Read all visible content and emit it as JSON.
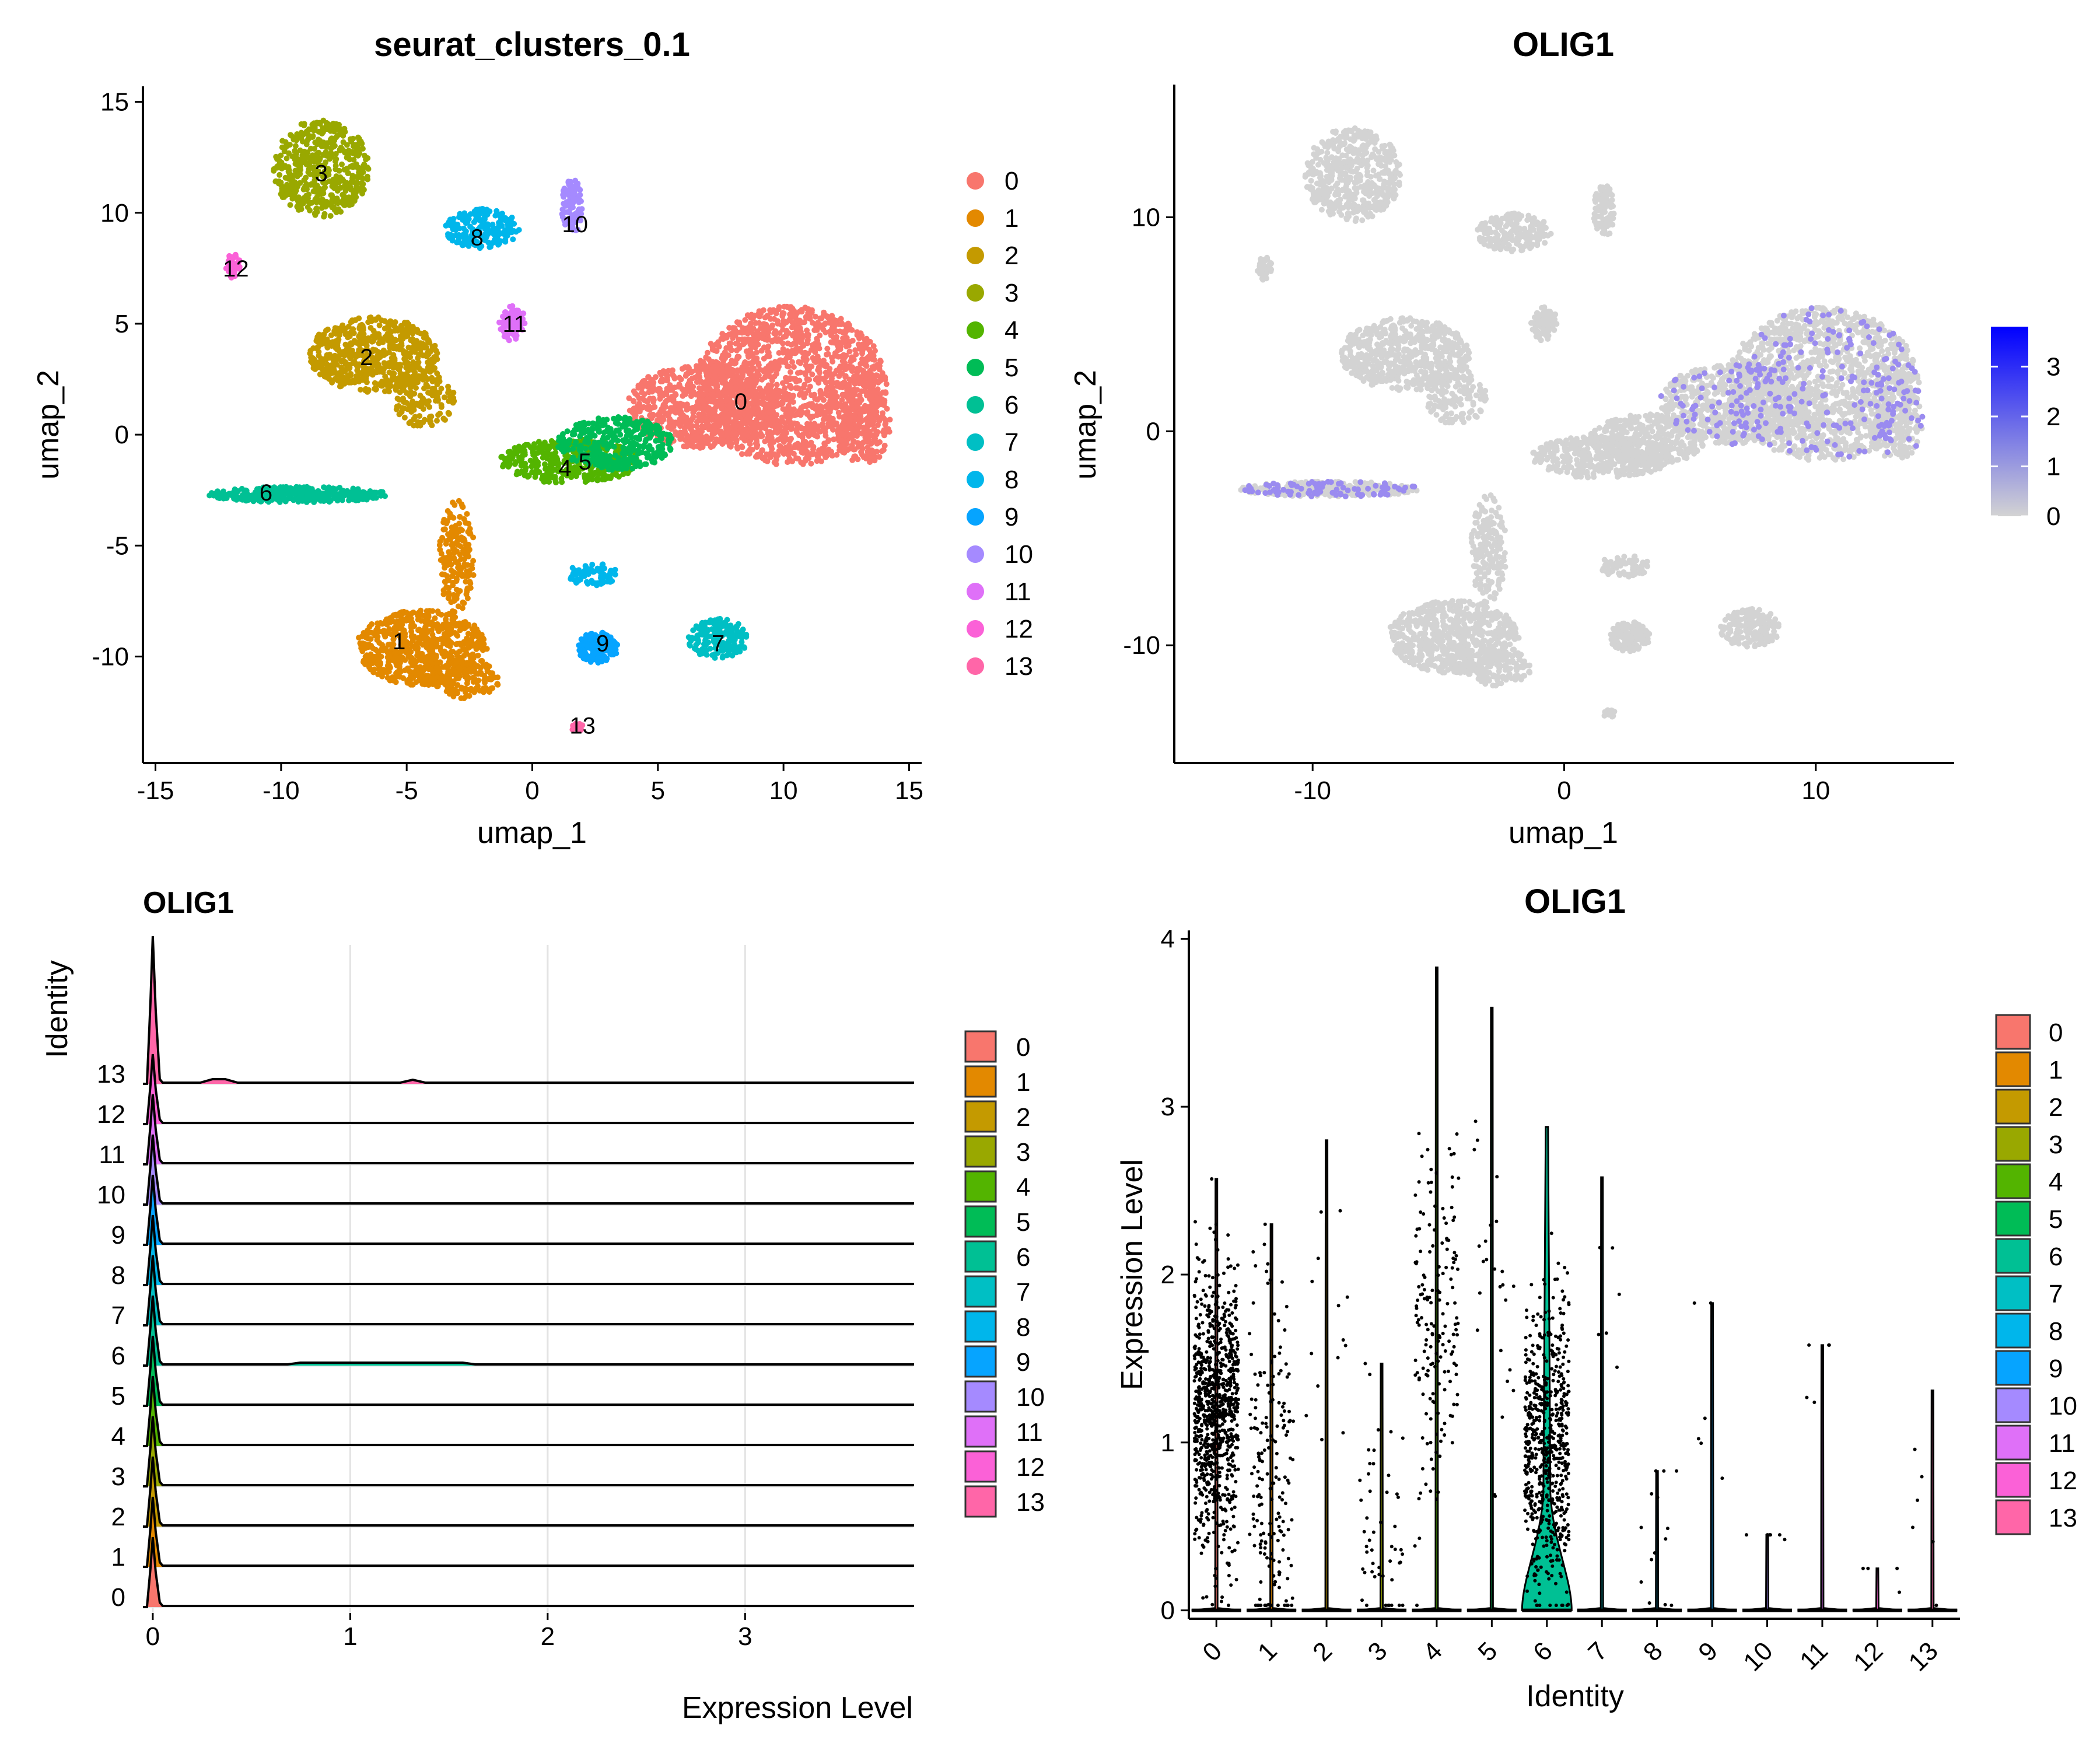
{
  "colors": {
    "clusters": [
      "#F8766D",
      "#E38900",
      "#C49A00",
      "#99A800",
      "#53B400",
      "#00BC56",
      "#00C094",
      "#00BFC4",
      "#00B6EB",
      "#06A4FF",
      "#A58AFF",
      "#DF70F8",
      "#FB61D7",
      "#FF66A8"
    ],
    "feature_low": "#D3D3D3",
    "feature_high": "#0000FF",
    "axis": "#000000"
  },
  "chart_data": [
    {
      "type": "scatter",
      "title": "seurat_clusters_0.1",
      "xlabel": "umap_1",
      "ylabel": "umap_2",
      "xlim": [
        -15.5,
        15.5
      ],
      "ylim": [
        -14.8,
        15.7
      ],
      "x_ticks": [
        -15,
        -10,
        -5,
        0,
        5,
        10,
        15
      ],
      "x_tick_labels": [
        "-15",
        "-10",
        "-5",
        "0",
        "5",
        "10",
        "15"
      ],
      "y_ticks": [
        -10,
        -5,
        0,
        5,
        10,
        15
      ],
      "y_tick_labels": [
        "-10",
        "-5",
        "0",
        "5",
        "10",
        "15"
      ],
      "legend_position": "right",
      "legend": [
        "0",
        "1",
        "2",
        "3",
        "4",
        "5",
        "6",
        "7",
        "8",
        "9",
        "10",
        "11",
        "12",
        "13"
      ],
      "cluster_labels": [
        {
          "label": "0",
          "x": 8.3,
          "y": 1.5
        },
        {
          "label": "1",
          "x": -5.3,
          "y": -9.3
        },
        {
          "label": "2",
          "x": -6.6,
          "y": 3.5
        },
        {
          "label": "3",
          "x": -8.4,
          "y": 11.8
        },
        {
          "label": "4",
          "x": 1.3,
          "y": -1.5
        },
        {
          "label": "5",
          "x": 2.1,
          "y": -1.2
        },
        {
          "label": "6",
          "x": -10.6,
          "y": -2.6
        },
        {
          "label": "7",
          "x": 7.4,
          "y": -9.4
        },
        {
          "label": "8",
          "x": -2.2,
          "y": 8.9
        },
        {
          "label": "9",
          "x": 2.8,
          "y": -9.4
        },
        {
          "label": "10",
          "x": 1.7,
          "y": 9.5
        },
        {
          "label": "11",
          "x": -0.7,
          "y": 5.0
        },
        {
          "label": "12",
          "x": -11.8,
          "y": 7.5
        },
        {
          "label": "13",
          "x": 2.0,
          "y": -13.1
        }
      ]
    },
    {
      "type": "scatter",
      "title": "OLIG1",
      "xlabel": "umap_1",
      "ylabel": "umap_2",
      "xlim": [
        -15.5,
        15.5
      ],
      "ylim": [
        -15.5,
        16.2
      ],
      "x_ticks": [
        -10,
        0,
        10
      ],
      "x_tick_labels": [
        "-10",
        "0",
        "10"
      ],
      "y_ticks": [
        -10,
        0,
        10
      ],
      "y_tick_labels": [
        "-10",
        "0",
        "10"
      ],
      "colorbar": {
        "min": 0,
        "max": 3.8,
        "ticks": [
          0,
          1,
          2,
          3
        ],
        "tick_labels": [
          "0",
          "1",
          "2",
          "3"
        ]
      },
      "legend_position": "right"
    },
    {
      "type": "area",
      "title": "OLIG1",
      "xlabel": "Expression Level",
      "ylabel": "Identity",
      "xlim": [
        -0.05,
        3.85
      ],
      "x_ticks": [
        0,
        1,
        2,
        3
      ],
      "x_tick_labels": [
        "0",
        "1",
        "2",
        "3"
      ],
      "categories": [
        "0",
        "1",
        "2",
        "3",
        "4",
        "5",
        "6",
        "7",
        "8",
        "9",
        "10",
        "11",
        "12",
        "13"
      ],
      "grid": true,
      "legend_position": "right",
      "legend": [
        "0",
        "1",
        "2",
        "3",
        "4",
        "5",
        "6",
        "7",
        "8",
        "9",
        "10",
        "11",
        "12",
        "13"
      ]
    },
    {
      "type": "violin",
      "title": "OLIG1",
      "xlabel": "Identity",
      "ylabel": "Expression Level",
      "ylim": [
        -0.05,
        4.05
      ],
      "y_ticks": [
        0,
        1,
        2,
        3,
        4
      ],
      "y_tick_labels": [
        "0",
        "1",
        "2",
        "3",
        "4"
      ],
      "categories": [
        "0",
        "1",
        "2",
        "3",
        "4",
        "5",
        "6",
        "7",
        "8",
        "9",
        "10",
        "11",
        "12",
        "13"
      ],
      "max_values": [
        2.57,
        2.3,
        2.8,
        1.47,
        3.83,
        3.59,
        2.88,
        2.58,
        0.83,
        1.83,
        0.45,
        1.58,
        0.25,
        1.31
      ],
      "legend_position": "right",
      "legend": [
        "0",
        "1",
        "2",
        "3",
        "4",
        "5",
        "6",
        "7",
        "8",
        "9",
        "10",
        "11",
        "12",
        "13"
      ]
    }
  ]
}
